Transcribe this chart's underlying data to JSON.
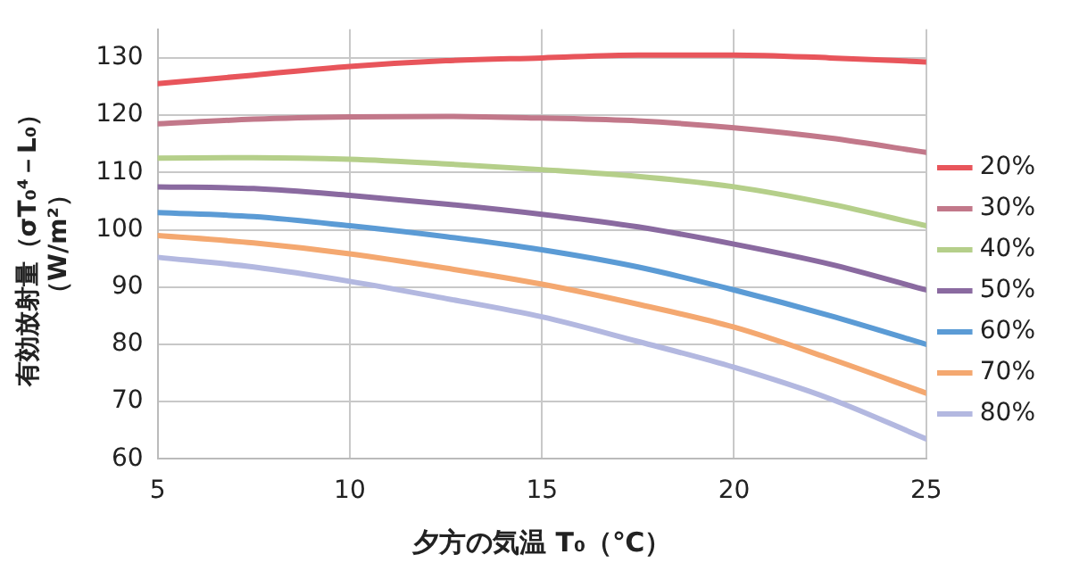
{
  "chart_data": {
    "type": "line",
    "xlabel": "夕方の気温 T₀（℃）",
    "ylabel": "有効放射量（σT₀⁴－L₀）（W/m²）",
    "x": [
      5,
      7.5,
      10,
      12.5,
      15,
      17.5,
      20,
      22.5,
      25
    ],
    "xlim": [
      5,
      25
    ],
    "xticks": [
      5,
      10,
      15,
      20,
      25
    ],
    "ylim": [
      60,
      135
    ],
    "yticks": [
      60,
      70,
      80,
      90,
      100,
      110,
      120,
      130
    ],
    "grid": true,
    "legend": "right",
    "marker": "none",
    "line_style": "solid",
    "series": [
      {
        "name": "20%",
        "color": "#e8555b",
        "values": [
          125.5,
          127,
          128.5,
          129.5,
          130,
          130.5,
          130.5,
          130,
          129.3
        ]
      },
      {
        "name": "30%",
        "color": "#c2788a",
        "values": [
          118.5,
          119.3,
          119.7,
          119.8,
          119.5,
          119,
          117.8,
          116,
          113.5
        ]
      },
      {
        "name": "40%",
        "color": "#b5cf8a",
        "values": [
          112.5,
          112.6,
          112.3,
          111.5,
          110.5,
          109.3,
          107.5,
          104.5,
          100.7
        ]
      },
      {
        "name": "50%",
        "color": "#8a6aa0",
        "values": [
          107.5,
          107.2,
          106,
          104.5,
          102.7,
          100.5,
          97.5,
          94,
          89.5
        ]
      },
      {
        "name": "60%",
        "color": "#5b9bd5",
        "values": [
          103,
          102.3,
          100.7,
          98.8,
          96.5,
          93.5,
          89.5,
          85,
          80
        ]
      },
      {
        "name": "70%",
        "color": "#f4a870",
        "values": [
          99,
          97.7,
          95.8,
          93.3,
          90.5,
          87,
          83,
          77.5,
          71.5
        ]
      },
      {
        "name": "80%",
        "color": "#b3b8e0",
        "values": [
          95.2,
          93.5,
          91,
          88,
          84.8,
          80.5,
          76,
          70.5,
          63.5
        ]
      }
    ]
  }
}
